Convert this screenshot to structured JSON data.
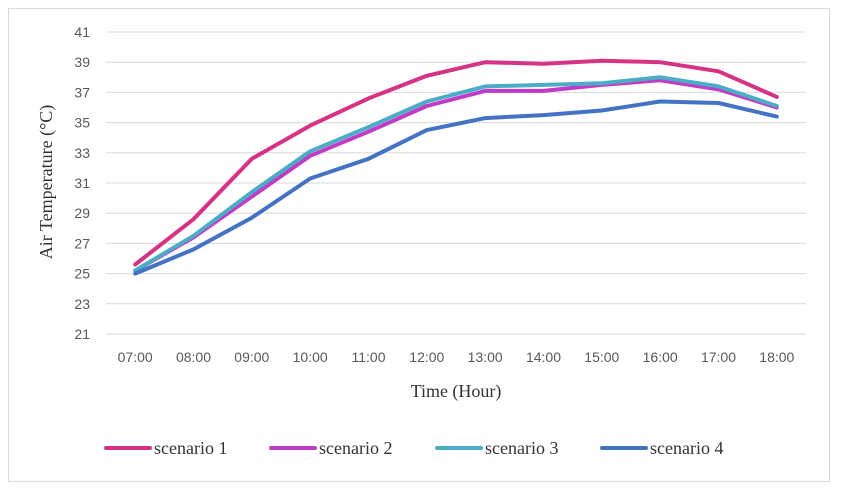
{
  "chart_data": {
    "type": "line",
    "xlabel": "Time (Hour)",
    "ylabel": "Air Temperature (°C)",
    "ylim": [
      21,
      41
    ],
    "yticks": [
      21,
      23,
      25,
      27,
      29,
      31,
      33,
      35,
      37,
      39,
      41
    ],
    "grid": true,
    "legend_position": "bottom",
    "categories": [
      "07:00",
      "08:00",
      "09:00",
      "10:00",
      "11:00",
      "12:00",
      "13:00",
      "14:00",
      "15:00",
      "16:00",
      "17:00",
      "18:00"
    ],
    "series": [
      {
        "name": "scenario 1",
        "color": "#d63384",
        "values": [
          25.6,
          28.6,
          32.6,
          34.8,
          36.6,
          38.1,
          39.0,
          38.9,
          39.1,
          39.0,
          38.4,
          36.7
        ]
      },
      {
        "name": "scenario 2",
        "color": "#c23bc6",
        "values": [
          25.2,
          27.4,
          30.1,
          32.8,
          34.4,
          36.1,
          37.1,
          37.1,
          37.5,
          37.8,
          37.2,
          36.0
        ]
      },
      {
        "name": "scenario 3",
        "color": "#4bacc6",
        "values": [
          25.2,
          27.5,
          30.4,
          33.1,
          34.7,
          36.4,
          37.4,
          37.5,
          37.6,
          38.0,
          37.4,
          36.1
        ]
      },
      {
        "name": "scenario 4",
        "color": "#4472c4",
        "values": [
          25.0,
          26.6,
          28.7,
          31.3,
          32.6,
          34.5,
          35.3,
          35.5,
          35.8,
          36.4,
          36.3,
          35.4
        ]
      }
    ]
  }
}
